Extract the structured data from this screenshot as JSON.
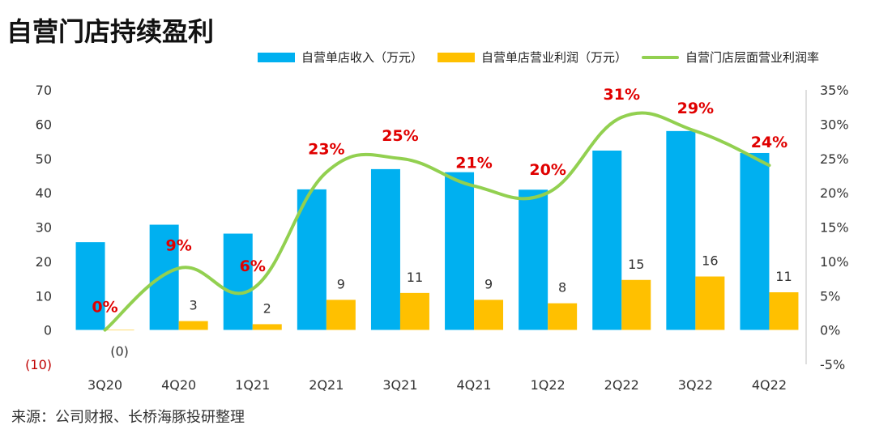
{
  "title": "自营门店持续盈利",
  "source": "来源：公司财报、长桥海豚投研整理",
  "colors": {
    "revenue": "#00B0F0",
    "profit": "#FFC000",
    "margin": "#92D050",
    "margin_label": "#E00000",
    "axis_text": "#333333",
    "neg_label": "#C00000"
  },
  "chart_data": {
    "type": "bar",
    "categories": [
      "3Q20",
      "4Q20",
      "1Q21",
      "2Q21",
      "3Q21",
      "4Q21",
      "1Q22",
      "2Q22",
      "3Q22",
      "4Q22"
    ],
    "series": [
      {
        "name": "自营单店收入（万元）",
        "type": "bar",
        "axis": "left",
        "values": [
          25.6,
          30.7,
          28.1,
          41.0,
          46.9,
          46.0,
          40.9,
          52.3,
          58.0,
          51.6
        ]
      },
      {
        "name": "自营单店营业利润（万元）",
        "type": "bar",
        "axis": "left",
        "values": [
          -0.1,
          2.6,
          1.7,
          8.8,
          10.8,
          8.8,
          7.8,
          14.6,
          15.6,
          11.0
        ],
        "data_labels": [
          "(0)",
          "3",
          "2",
          "9",
          "11",
          "9",
          "8",
          "15",
          "16",
          "11"
        ]
      },
      {
        "name": "自营门店层面营业利润率",
        "type": "line",
        "axis": "right",
        "values": [
          0,
          9,
          6,
          23,
          25,
          21,
          20,
          31,
          29,
          24
        ],
        "data_labels": [
          "0%",
          "9%",
          "6%",
          "23%",
          "25%",
          "21%",
          "20%",
          "31%",
          "29%",
          "24%"
        ]
      }
    ],
    "y_left": {
      "ticks": [
        "(10)",
        "0",
        "10",
        "20",
        "30",
        "40",
        "50",
        "60",
        "70"
      ],
      "range": [
        -10,
        70
      ]
    },
    "y_right": {
      "ticks": [
        "-5%",
        "0%",
        "5%",
        "10%",
        "15%",
        "20%",
        "25%",
        "30%",
        "35%"
      ],
      "range": [
        -5,
        35
      ]
    },
    "grid": false,
    "legend": "top"
  }
}
